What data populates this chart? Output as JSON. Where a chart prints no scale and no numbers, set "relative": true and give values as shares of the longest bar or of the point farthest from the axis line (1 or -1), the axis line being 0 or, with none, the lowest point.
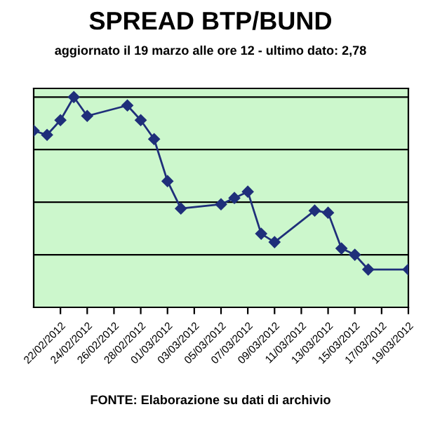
{
  "chart_data": {
    "type": "line",
    "title": "SPREAD BTP/BUND",
    "subtitle": "aggiornato il 19 marzo alle ore 12 - ultimo dato: 2,78",
    "annotations": [
      "FONTE: Elaborazione su dati di archivio"
    ],
    "relative": true,
    "x": [
      "2012-02-20",
      "2012-02-21",
      "2012-02-22",
      "2012-02-23",
      "2012-02-24",
      "2012-02-27",
      "2012-02-28",
      "2012-02-29",
      "2012-03-01",
      "2012-03-02",
      "2012-03-05",
      "2012-03-06",
      "2012-03-07",
      "2012-03-08",
      "2012-03-09",
      "2012-03-12",
      "2012-03-13",
      "2012-03-14",
      "2012-03-15",
      "2012-03-16",
      "2012-03-19"
    ],
    "series": [
      {
        "color": "#1f2f7a",
        "values": [
          0.84,
          0.82,
          0.89,
          1,
          0.91,
          0.96,
          0.89,
          0.8,
          0.6,
          0.47,
          0.49,
          0.52,
          0.55,
          0.35,
          0.31,
          0.46,
          0.45,
          0.28,
          0.25,
          0.18,
          0.18
        ]
      }
    ],
    "xlim": [
      "2012-02-20",
      "2012-03-19"
    ],
    "xticks": [
      {
        "value": "2012-02-22",
        "label": "22/02/2012"
      },
      {
        "value": "2012-02-24",
        "label": "24/02/2012"
      },
      {
        "value": "2012-02-26",
        "label": "26/02/2012"
      },
      {
        "value": "2012-02-28",
        "label": "28/02/2012"
      },
      {
        "value": "2012-03-01",
        "label": "01/03/2012"
      },
      {
        "value": "2012-03-03",
        "label": "03/03/2012"
      },
      {
        "value": "2012-03-05",
        "label": "05/03/2012"
      },
      {
        "value": "2012-03-07",
        "label": "07/03/2012"
      },
      {
        "value": "2012-03-09",
        "label": "09/03/2012"
      },
      {
        "value": "2012-03-11",
        "label": "11/03/2012"
      },
      {
        "value": "2012-03-13",
        "label": "13/03/2012"
      },
      {
        "value": "2012-03-15",
        "label": "15/03/2012"
      },
      {
        "value": "2012-03-17",
        "label": "17/03/2012"
      },
      {
        "value": "2012-03-19",
        "label": "19/03/2012"
      }
    ],
    "grid": "y",
    "marker": "diamond",
    "line_style": "solid",
    "legend": false
  }
}
